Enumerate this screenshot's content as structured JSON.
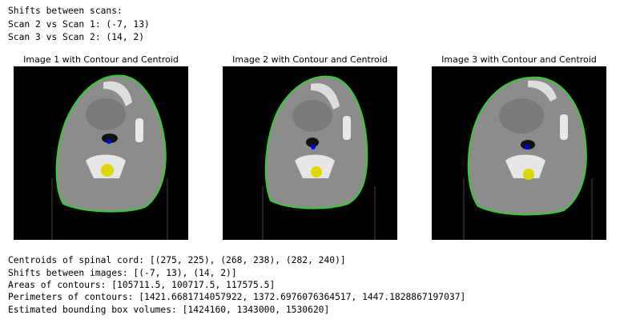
{
  "header": {
    "lines": [
      "Shifts between scans:",
      "Scan 2 vs Scan 1: (-7, 13)",
      "Scan 3 vs Scan 2: (14, 2)"
    ]
  },
  "images": [
    {
      "title": "Image 1 with Contour and Centroid"
    },
    {
      "title": "Image 2 with Contour and Centroid"
    },
    {
      "title": "Image 3 with Contour and Centroid"
    }
  ],
  "footer": {
    "lines": [
      "Centroids of spinal cord: [(275, 225), (268, 238), (282, 240)]",
      "Shifts between images: [(-7, 13), (14, 2)]",
      "Areas of contours: [105711.5, 100717.5, 117575.5]",
      "Perimeters of contours: [1421.6681714057922, 1372.6976076364517, 1447.1828867197037]",
      "Estimated bounding box volumes: [1424160, 1343000, 1530620]"
    ]
  }
}
